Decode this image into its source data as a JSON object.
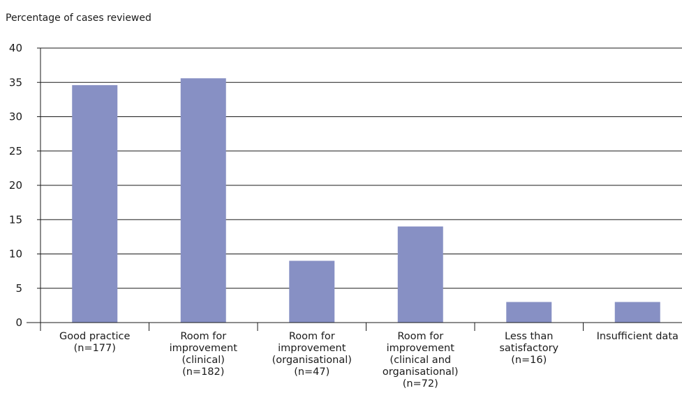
{
  "chart_data": {
    "type": "bar",
    "ylabel": "Percentage of cases reviewed",
    "xlabel": "",
    "ylim": [
      0,
      40
    ],
    "yticks": [
      0,
      5,
      10,
      15,
      20,
      25,
      30,
      35,
      40
    ],
    "grid": true,
    "bar_color": "#8790c4",
    "categories": [
      "Good practice\n(n=177)",
      "Room for\nimprovement\n(clinical)\n(n=182)",
      "Room for\nimprovement\n(organisational)\n(n=47)",
      "Room for\nimprovement\n(clinical and\norganisational)\n(n=72)",
      "Less than\nsatisfactory\n(n=16)",
      "Insufficient data"
    ],
    "values": [
      34.6,
      35.6,
      9.0,
      14.0,
      3.0,
      3.0
    ]
  }
}
